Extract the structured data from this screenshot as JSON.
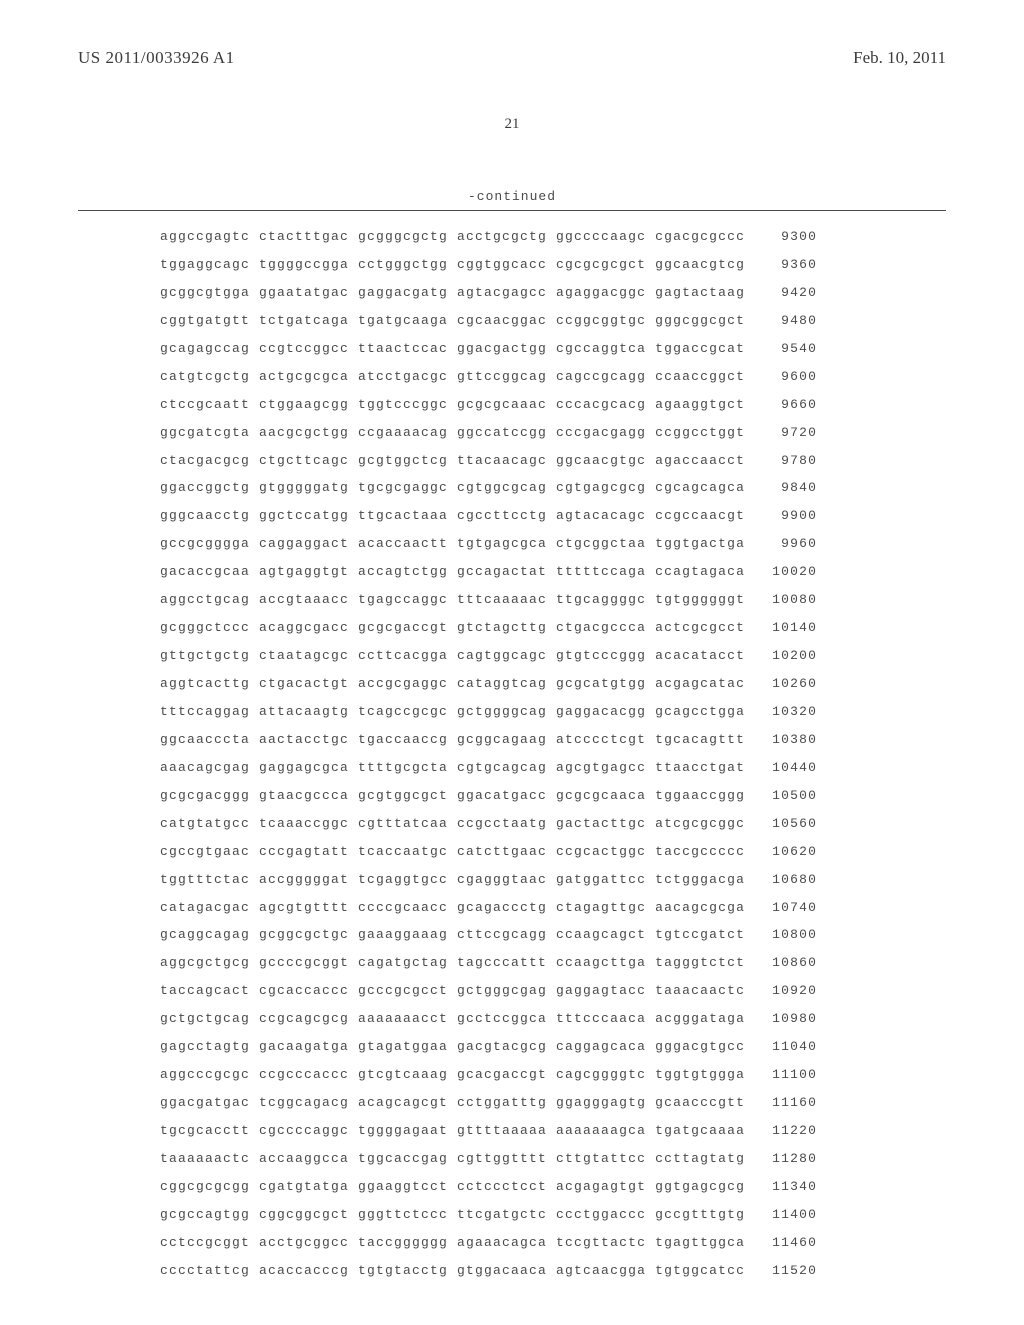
{
  "header": {
    "pub_number": "US 2011/0033926 A1",
    "pub_date": "Feb. 10, 2011"
  },
  "page_number": "21",
  "continued_label": "-continued",
  "sequence_rows": [
    {
      "groups": [
        "aggccgagtc",
        "ctactttgac",
        "gcgggcgctg",
        "acctgcgctg",
        "ggccccaagc",
        "cgacgcgccc"
      ],
      "pos": "9300"
    },
    {
      "groups": [
        "tggaggcagc",
        "tggggccgga",
        "cctgggctgg",
        "cggtggcacc",
        "cgcgcgcgct",
        "ggcaacgtcg"
      ],
      "pos": "9360"
    },
    {
      "groups": [
        "gcggcgtgga",
        "ggaatatgac",
        "gaggacgatg",
        "agtacgagcc",
        "agaggacggc",
        "gagtactaag"
      ],
      "pos": "9420"
    },
    {
      "groups": [
        "cggtgatgtt",
        "tctgatcaga",
        "tgatgcaaga",
        "cgcaacggac",
        "ccggcggtgc",
        "gggcggcgct"
      ],
      "pos": "9480"
    },
    {
      "groups": [
        "gcagagccag",
        "ccgtccggcc",
        "ttaactccac",
        "ggacgactgg",
        "cgccaggtca",
        "tggaccgcat"
      ],
      "pos": "9540"
    },
    {
      "groups": [
        "catgtcgctg",
        "actgcgcgca",
        "atcctgacgc",
        "gttccggcag",
        "cagccgcagg",
        "ccaaccggct"
      ],
      "pos": "9600"
    },
    {
      "groups": [
        "ctccgcaatt",
        "ctggaagcgg",
        "tggtcccggc",
        "gcgcgcaaac",
        "cccacgcacg",
        "agaaggtgct"
      ],
      "pos": "9660"
    },
    {
      "groups": [
        "ggcgatcgta",
        "aacgcgctgg",
        "ccgaaaacag",
        "ggccatccgg",
        "cccgacgagg",
        "ccggcctggt"
      ],
      "pos": "9720"
    },
    {
      "groups": [
        "ctacgacgcg",
        "ctgcttcagc",
        "gcgtggctcg",
        "ttacaacagc",
        "ggcaacgtgc",
        "agaccaacct"
      ],
      "pos": "9780"
    },
    {
      "groups": [
        "ggaccggctg",
        "gtgggggatg",
        "tgcgcgaggc",
        "cgtggcgcag",
        "cgtgagcgcg",
        "cgcagcagca"
      ],
      "pos": "9840"
    },
    {
      "groups": [
        "gggcaacctg",
        "ggctccatgg",
        "ttgcactaaa",
        "cgccttcctg",
        "agtacacagc",
        "ccgccaacgt"
      ],
      "pos": "9900"
    },
    {
      "groups": [
        "gccgcgggga",
        "caggaggact",
        "acaccaactt",
        "tgtgagcgca",
        "ctgcggctaa",
        "tggtgactga"
      ],
      "pos": "9960"
    },
    {
      "groups": [
        "gacaccgcaa",
        "agtgaggtgt",
        "accagtctgg",
        "gccagactat",
        "tttttccaga",
        "ccagtagaca"
      ],
      "pos": "10020"
    },
    {
      "groups": [
        "aggcctgcag",
        "accgtaaacc",
        "tgagccaggc",
        "tttcaaaaac",
        "ttgcaggggc",
        "tgtggggggt"
      ],
      "pos": "10080"
    },
    {
      "groups": [
        "gcgggctccc",
        "acaggcgacc",
        "gcgcgaccgt",
        "gtctagcttg",
        "ctgacgccca",
        "actcgcgcct"
      ],
      "pos": "10140"
    },
    {
      "groups": [
        "gttgctgctg",
        "ctaatagcgc",
        "ccttcacgga",
        "cagtggcagc",
        "gtgtcccggg",
        "acacatacct"
      ],
      "pos": "10200"
    },
    {
      "groups": [
        "aggtcacttg",
        "ctgacactgt",
        "accgcgaggc",
        "cataggtcag",
        "gcgcatgtgg",
        "acgagcatac"
      ],
      "pos": "10260"
    },
    {
      "groups": [
        "tttccaggag",
        "attacaagtg",
        "tcagccgcgc",
        "gctggggcag",
        "gaggacacgg",
        "gcagcctgga"
      ],
      "pos": "10320"
    },
    {
      "groups": [
        "ggcaacccta",
        "aactacctgc",
        "tgaccaaccg",
        "gcggcagaag",
        "atcccctcgt",
        "tgcacagttt"
      ],
      "pos": "10380"
    },
    {
      "groups": [
        "aaacagcgag",
        "gaggagcgca",
        "ttttgcgcta",
        "cgtgcagcag",
        "agcgtgagcc",
        "ttaacctgat"
      ],
      "pos": "10440"
    },
    {
      "groups": [
        "gcgcgacggg",
        "gtaacgccca",
        "gcgtggcgct",
        "ggacatgacc",
        "gcgcgcaaca",
        "tggaaccggg"
      ],
      "pos": "10500"
    },
    {
      "groups": [
        "catgtatgcc",
        "tcaaaccggc",
        "cgtttatcaa",
        "ccgcctaatg",
        "gactacttgc",
        "atcgcgcggc"
      ],
      "pos": "10560"
    },
    {
      "groups": [
        "cgccgtgaac",
        "cccgagtatt",
        "tcaccaatgc",
        "catcttgaac",
        "ccgcactggc",
        "taccgccccc"
      ],
      "pos": "10620"
    },
    {
      "groups": [
        "tggtttctac",
        "accgggggat",
        "tcgaggtgcc",
        "cgagggtaac",
        "gatggattcc",
        "tctgggacga"
      ],
      "pos": "10680"
    },
    {
      "groups": [
        "catagacgac",
        "agcgtgtttt",
        "ccccgcaacc",
        "gcagaccctg",
        "ctagagttgc",
        "aacagcgcga"
      ],
      "pos": "10740"
    },
    {
      "groups": [
        "gcaggcagag",
        "gcggcgctgc",
        "gaaaggaaag",
        "cttccgcagg",
        "ccaagcagct",
        "tgtccgatct"
      ],
      "pos": "10800"
    },
    {
      "groups": [
        "aggcgctgcg",
        "gccccgcggt",
        "cagatgctag",
        "tagcccattt",
        "ccaagcttga",
        "tagggtctct"
      ],
      "pos": "10860"
    },
    {
      "groups": [
        "taccagcact",
        "cgcaccaccc",
        "gcccgcgcct",
        "gctgggcgag",
        "gaggagtacc",
        "taaacaactc"
      ],
      "pos": "10920"
    },
    {
      "groups": [
        "gctgctgcag",
        "ccgcagcgcg",
        "aaaaaaacct",
        "gcctccggca",
        "tttcccaaca",
        "acgggataga"
      ],
      "pos": "10980"
    },
    {
      "groups": [
        "gagcctagtg",
        "gacaagatga",
        "gtagatggaa",
        "gacgtacgcg",
        "caggagcaca",
        "gggacgtgcc"
      ],
      "pos": "11040"
    },
    {
      "groups": [
        "aggcccgcgc",
        "ccgcccaccc",
        "gtcgtcaaag",
        "gcacgaccgt",
        "cagcggggtc",
        "tggtgtggga"
      ],
      "pos": "11100"
    },
    {
      "groups": [
        "ggacgatgac",
        "tcggcagacg",
        "acagcagcgt",
        "cctggatttg",
        "ggagggagtg",
        "gcaacccgtt"
      ],
      "pos": "11160"
    },
    {
      "groups": [
        "tgcgcacctt",
        "cgccccaggc",
        "tggggagaat",
        "gttttaaaaa",
        "aaaaaaagca",
        "tgatgcaaaa"
      ],
      "pos": "11220"
    },
    {
      "groups": [
        "taaaaaactc",
        "accaaggcca",
        "tggcaccgag",
        "cgttggtttt",
        "cttgtattcc",
        "ccttagtatg"
      ],
      "pos": "11280"
    },
    {
      "groups": [
        "cggcgcgcgg",
        "cgatgtatga",
        "ggaaggtcct",
        "cctccctcct",
        "acgagagtgt",
        "ggtgagcgcg"
      ],
      "pos": "11340"
    },
    {
      "groups": [
        "gcgccagtgg",
        "cggcggcgct",
        "gggttctccc",
        "ttcgatgctc",
        "ccctggaccc",
        "gccgtttgtg"
      ],
      "pos": "11400"
    },
    {
      "groups": [
        "cctccgcggt",
        "acctgcggcc",
        "taccgggggg",
        "agaaacagca",
        "tccgttactc",
        "tgagttggca"
      ],
      "pos": "11460"
    },
    {
      "groups": [
        "cccctattcg",
        "acaccacccg",
        "tgtgtacctg",
        "gtggacaaca",
        "agtcaacgga",
        "tgtggcatcc"
      ],
      "pos": "11520"
    }
  ]
}
